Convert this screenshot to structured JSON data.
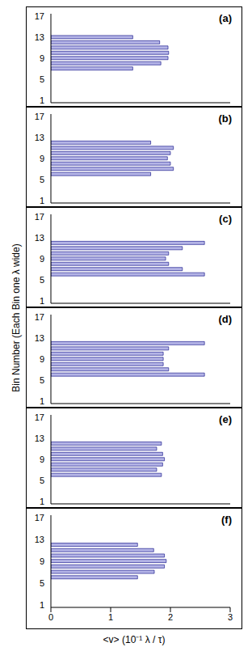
{
  "xlabel": "<v>   (10⁻¹ λ / τ)",
  "ylabel": "Bin Number   (Each Bin one λ wide)",
  "chart_data": [
    {
      "type": "bar",
      "title": "(a)",
      "orientation": "horizontal",
      "color": "#b4b4e6",
      "tick_labels": "y",
      "categories": [
        1,
        null,
        null,
        null,
        5,
        null,
        null,
        null,
        9,
        null,
        null,
        null,
        13,
        null,
        null,
        null,
        17
      ],
      "values": [
        null,
        null,
        null,
        null,
        null,
        null,
        1.37,
        1.84,
        1.96,
        1.97,
        1.96,
        1.82,
        1.37,
        null,
        null,
        null,
        null
      ],
      "xlim": [
        0,
        3
      ],
      "xticks": [
        0,
        1,
        2,
        3
      ]
    },
    {
      "type": "bar",
      "title": "(b)",
      "orientation": "horizontal",
      "color": "#b4b4e6",
      "tick_labels": "y",
      "categories": [
        1,
        null,
        null,
        null,
        5,
        null,
        null,
        null,
        9,
        null,
        null,
        null,
        13,
        null,
        null,
        null,
        17
      ],
      "values": [
        null,
        null,
        null,
        null,
        null,
        1.67,
        2.05,
        2.0,
        1.95,
        2.0,
        2.05,
        1.67,
        null,
        null,
        null,
        null,
        null
      ],
      "xlim": [
        0,
        3
      ],
      "xticks": [
        0,
        1,
        2,
        3
      ]
    },
    {
      "type": "bar",
      "title": "(c)",
      "orientation": "horizontal",
      "color": "#b4b4e6",
      "tick_labels": "y",
      "categories": [
        1,
        null,
        null,
        null,
        5,
        null,
        null,
        null,
        9,
        null,
        null,
        null,
        13,
        null,
        null,
        null,
        17
      ],
      "values": [
        null,
        null,
        null,
        null,
        null,
        2.57,
        2.2,
        1.97,
        1.92,
        1.97,
        2.2,
        2.57,
        null,
        null,
        null,
        null,
        null
      ],
      "xlim": [
        0,
        3
      ],
      "xticks": [
        0,
        1,
        2,
        3
      ]
    },
    {
      "type": "bar",
      "title": "(d)",
      "orientation": "horizontal",
      "color": "#b4b4e6",
      "tick_labels": "y",
      "categories": [
        1,
        null,
        null,
        null,
        5,
        null,
        null,
        null,
        9,
        null,
        null,
        null,
        13,
        null,
        null,
        null,
        17
      ],
      "values": [
        null,
        null,
        null,
        null,
        null,
        2.57,
        1.97,
        1.88,
        1.88,
        1.88,
        1.97,
        2.57,
        null,
        null,
        null,
        null,
        null
      ],
      "xlim": [
        0,
        3
      ],
      "xticks": [
        0,
        1,
        2,
        3
      ]
    },
    {
      "type": "bar",
      "title": "(e)",
      "orientation": "horizontal",
      "color": "#b4b4e6",
      "tick_labels": "y",
      "categories": [
        1,
        null,
        null,
        null,
        5,
        null,
        null,
        null,
        9,
        null,
        null,
        null,
        13,
        null,
        null,
        null,
        17
      ],
      "values": [
        null,
        null,
        null,
        null,
        null,
        1.85,
        1.77,
        1.87,
        1.9,
        1.87,
        1.77,
        1.85,
        null,
        null,
        null,
        null,
        null
      ],
      "xlim": [
        0,
        3
      ],
      "xticks": [
        0,
        1,
        2,
        3
      ]
    },
    {
      "type": "bar",
      "title": "(f)",
      "orientation": "horizontal",
      "color": "#b4b4e6",
      "categories": [
        1,
        null,
        null,
        null,
        5,
        null,
        null,
        null,
        9,
        null,
        null,
        null,
        13,
        null,
        null,
        null,
        17
      ],
      "values": [
        null,
        null,
        null,
        null,
        null,
        1.45,
        1.73,
        1.9,
        1.93,
        1.9,
        1.72,
        1.45,
        null,
        null,
        null,
        null,
        null
      ],
      "xlim": [
        0,
        3
      ],
      "xticks": [
        0,
        1,
        2,
        3
      ]
    }
  ]
}
